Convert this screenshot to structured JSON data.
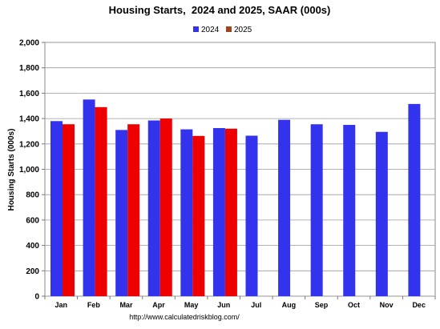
{
  "chart_data": {
    "type": "bar",
    "title": "Housing Starts,  2024 and 2025, SAAR (000s)",
    "ylabel": "Housing Starts (000s)",
    "xlabel": "",
    "source": "http://www.calculatedriskblog.com/",
    "categories": [
      "Jan",
      "Feb",
      "Mar",
      "Apr",
      "May",
      "Jun",
      "Jul",
      "Aug",
      "Sep",
      "Oct",
      "Nov",
      "Dec"
    ],
    "ylim": [
      0,
      2000
    ],
    "yticks": [
      "0",
      "200",
      "400",
      "600",
      "800",
      "1,000",
      "1,200",
      "1,400",
      "1,600",
      "1,800",
      "2,000"
    ],
    "ytick_values": [
      0,
      200,
      400,
      600,
      800,
      1000,
      1200,
      1400,
      1600,
      1800,
      2000
    ],
    "grid": true,
    "legend_position": "top-center",
    "series": [
      {
        "name": "2024",
        "color": "#3333ee",
        "values": [
          1380,
          1550,
          1310,
          1385,
          1315,
          1325,
          1265,
          1390,
          1355,
          1350,
          1295,
          1515
        ]
      },
      {
        "name": "2025",
        "color": "#ee0000",
        "legend_color": "#a0441a",
        "values": [
          1355,
          1490,
          1355,
          1400,
          1263,
          1320,
          null,
          null,
          null,
          null,
          null,
          null
        ]
      }
    ]
  }
}
